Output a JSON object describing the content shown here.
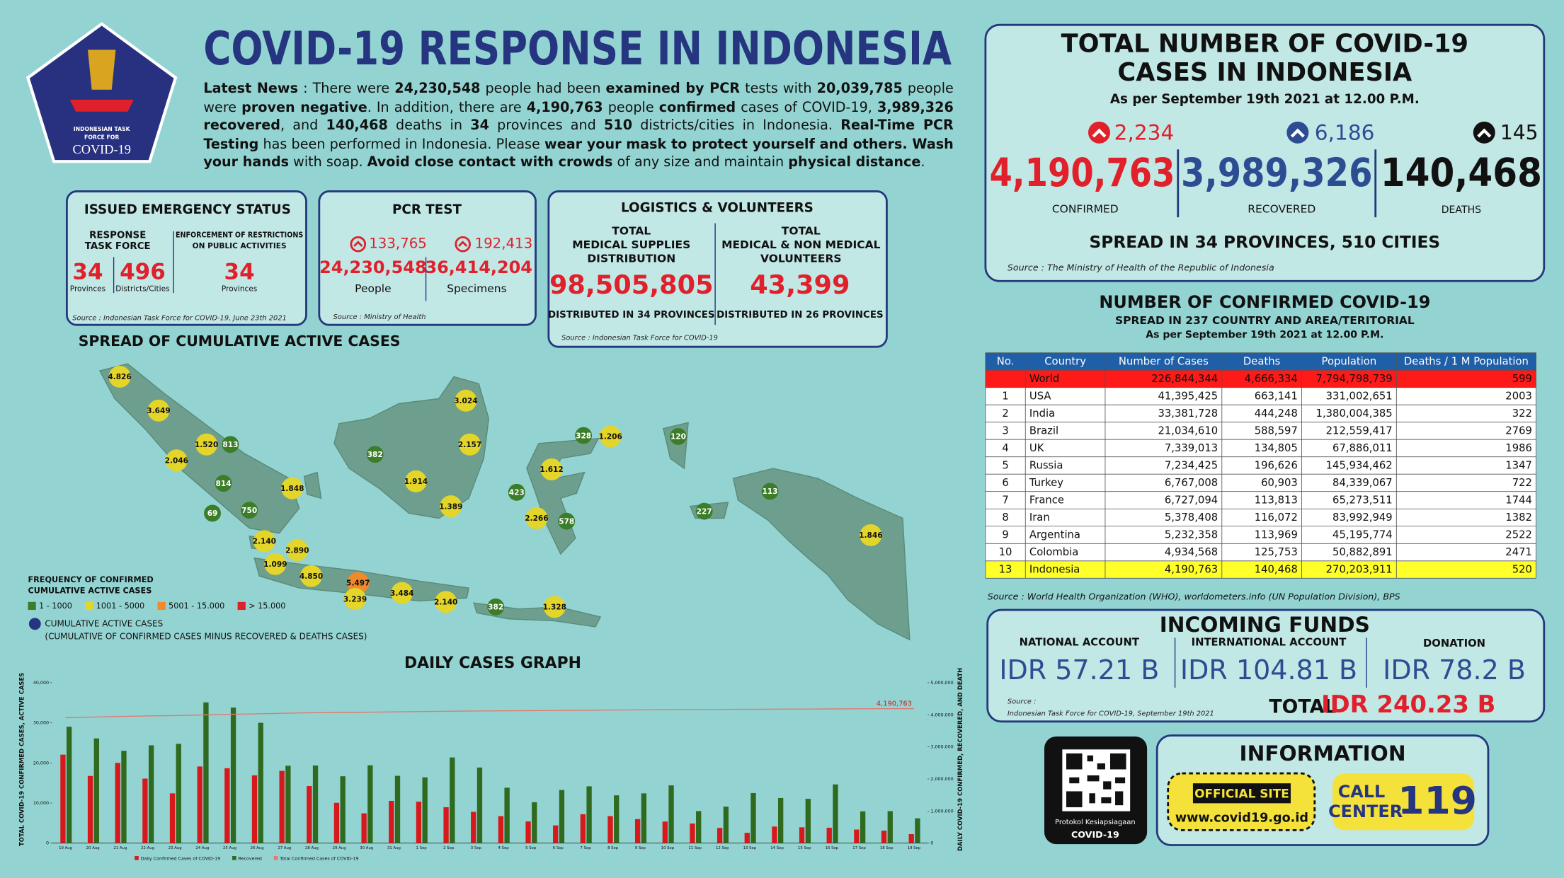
{
  "header": {
    "title": "COVID-19 RESPONSE IN INDONESIA",
    "logo_text": [
      "INDONESIAN TASK",
      "FORCE FOR",
      "COVID-19"
    ]
  },
  "news": [
    {
      "text": "Latest News",
      "bold": true
    },
    {
      "text": " : There were "
    },
    {
      "text": "24,230,548",
      "bold": true
    },
    {
      "text": " people had been "
    },
    {
      "text": "examined by PCR",
      "bold": true
    },
    {
      "text": " tests with "
    },
    {
      "text": "20,039,785",
      "bold": true
    },
    {
      "text": " people were "
    },
    {
      "text": "proven negative",
      "bold": true
    },
    {
      "text": ". In addition, there are "
    },
    {
      "text": "4,190,763",
      "bold": true
    },
    {
      "text": " people "
    },
    {
      "text": "confirmed",
      "bold": true
    },
    {
      "text": " cases of COVID-19, "
    },
    {
      "text": "3,989,326 recovered",
      "bold": true
    },
    {
      "text": ", and "
    },
    {
      "text": "140,468",
      "bold": true
    },
    {
      "text": " deaths in "
    },
    {
      "text": "34",
      "bold": true
    },
    {
      "text": " provinces and "
    },
    {
      "text": "510",
      "bold": true
    },
    {
      "text": " districts/cities in Indonesia. "
    },
    {
      "text": "Real-Time PCR Testing",
      "bold": true
    },
    {
      "text": " has been performed in Indonesia. Please "
    },
    {
      "text": "wear your mask to protect yourself and others. Wash your hands",
      "bold": true
    },
    {
      "text": " with soap. "
    },
    {
      "text": "Avoid close contact with crowds",
      "bold": true
    },
    {
      "text": " of any size and maintain "
    },
    {
      "text": "physical distance",
      "bold": true
    },
    {
      "text": "."
    }
  ],
  "emergency": {
    "title": "ISSUED EMERGENCY STATUS",
    "col1": [
      "RESPONSE",
      "TASK FORCE"
    ],
    "col2": [
      "ENFORCEMENT OF RESTRICTIONS",
      "ON PUBLIC ACTIVITIES"
    ],
    "v1": "34",
    "l1": "Provinces",
    "v2": "496",
    "l2": "Districts/Cities",
    "v3": "34",
    "l3": "Provinces",
    "source": "Source : Indonesian Task Force for COVID-19, June 23th 2021"
  },
  "pcr": {
    "title": "PCR TEST",
    "inc1": "133,765",
    "inc2": "192,413",
    "v1": "24,230,548",
    "l1": "People",
    "v2": "36,414,204",
    "l2": "Specimens",
    "source": "Source : Ministry of Health"
  },
  "logistics": {
    "title": "LOGISTICS & VOLUNTEERS",
    "h1": [
      "TOTAL",
      "MEDICAL SUPPLIES",
      "DISTRIBUTION"
    ],
    "h2": [
      "TOTAL",
      "MEDICAL & NON MEDICAL",
      "VOLUNTEERS"
    ],
    "v1": "98,505,805",
    "v2": "43,399",
    "d1": "DISTRIBUTED IN 34 PROVINCES",
    "d2": "DISTRIBUTED IN 26 PROVINCES",
    "source": "Source : Indonesian Task Force for COVID-19"
  },
  "totals": {
    "title": [
      "TOTAL NUMBER OF COVID-19",
      "CASES IN INDONESIA"
    ],
    "date": "As per September 19th 2021 at 12.00 P.M.",
    "inc_confirmed": "2,234",
    "inc_recovered": "6,186",
    "inc_deaths": "145",
    "confirmed": "4,190,763",
    "recovered": "3,989,326",
    "deaths": "140,468",
    "l_confirmed": "CONFIRMED",
    "l_recovered": "RECOVERED",
    "l_deaths": "DEATHS",
    "spread": "SPREAD IN 34 PROVINCES, 510 CITIES",
    "source": "Source : The Ministry of Health of the Republic of Indonesia"
  },
  "table": {
    "title": "NUMBER OF CONFIRMED COVID-19",
    "subtitle": "SPREAD IN 237 COUNTRY AND AREA/TERITORIAL",
    "date": "As per September 19th 2021 at 12.00 P.M.",
    "header": [
      "No.",
      "Country",
      "Number of Cases",
      "Deaths",
      "Population",
      "Deaths / 1 M Population"
    ],
    "rows": [
      [
        null,
        "World",
        "226,844,344",
        "4,666,334",
        "7,794,798,739",
        "599"
      ],
      [
        "1",
        "USA",
        "41,395,425",
        "663,141",
        "331,002,651",
        "2003"
      ],
      [
        "2",
        "India",
        "33,381,728",
        "444,248",
        "1,380,004,385",
        "322"
      ],
      [
        "3",
        "Brazil",
        "21,034,610",
        "588,597",
        "212,559,417",
        "2769"
      ],
      [
        "4",
        "UK",
        "7,339,013",
        "134,805",
        "67,886,011",
        "1986"
      ],
      [
        "5",
        "Russia",
        "7,234,425",
        "196,626",
        "145,934,462",
        "1347"
      ],
      [
        "6",
        "Turkey",
        "6,767,008",
        "60,903",
        "84,339,067",
        "722"
      ],
      [
        "7",
        "France",
        "6,727,094",
        "113,813",
        "65,273,511",
        "1744"
      ],
      [
        "8",
        "Iran",
        "5,378,408",
        "116,072",
        "83,992,949",
        "1382"
      ],
      [
        "9",
        "Argentina",
        "5,232,358",
        "113,969",
        "45,195,774",
        "2522"
      ],
      [
        "10",
        "Colombia",
        "4,934,568",
        "125,753",
        "50,882,891",
        "2471"
      ],
      [
        "13",
        "Indonesia",
        "4,190,763",
        "140,468",
        "270,203,911",
        "520"
      ]
    ],
    "source": "Source : World Health Organization (WHO), worldometers.info (UN Population Division), BPS"
  },
  "funds": {
    "title": "INCOMING FUNDS",
    "h1": "NATIONAL ACCOUNT",
    "h2": "INTERNATIONAL ACCOUNT",
    "h3": "DONATION",
    "v1": "IDR 57.21 B",
    "v2": "IDR 104.81 B",
    "v3": "IDR 78.2 B",
    "source": [
      "Source :",
      "Indonesian Task Force for COVID-19, September 19th 2021"
    ],
    "total_label": "TOTAL",
    "total": "IDR 240.23 B"
  },
  "info": {
    "qr_caption": [
      "Protokol Kesiapsiagaan",
      "COVID-19"
    ],
    "title": "INFORMATION",
    "site_label": "OFFICIAL SITE",
    "site": "www.covid19.go.id",
    "call": [
      "CALL",
      "CENTER"
    ],
    "call_number": "119"
  },
  "map": {
    "title": "SPREAD OF CUMULATIVE ACTIVE CASES",
    "legend_title": [
      "FREQUENCY OF CONFIRMED",
      "CUMULATIVE ACTIVE CASES"
    ],
    "legend": [
      {
        "label": "1 - 1000",
        "color": "#3c7d2a"
      },
      {
        "label": "1001 - 5000",
        "color": "#e3d52a"
      },
      {
        "label": "5001 - 15.000",
        "color": "#f08a2a"
      },
      {
        "label": "> 15.000",
        "color": "#e0202b"
      }
    ],
    "active_label": "CUMULATIVE ACTIVE CASES",
    "active_note": "(CUMULATIVE OF CONFIRMED CASES MINUS RECOVERED & DEATHS CASES)",
    "markers": [
      {
        "label": "4.826",
        "color": "#e3d52a"
      },
      {
        "label": "3.649",
        "color": "#e3d52a"
      },
      {
        "label": "1.520",
        "color": "#e3d52a"
      },
      {
        "label": "813",
        "color": "#3c7d2a"
      },
      {
        "label": "2.046",
        "color": "#e3d52a"
      },
      {
        "label": "814",
        "color": "#3c7d2a"
      },
      {
        "label": "1.848",
        "color": "#e3d52a"
      },
      {
        "label": "69",
        "color": "#3c7d2a"
      },
      {
        "label": "750",
        "color": "#3c7d2a"
      },
      {
        "label": "2.140",
        "color": "#e3d52a"
      },
      {
        "label": "2.890",
        "color": "#e3d52a"
      },
      {
        "label": "1.099",
        "color": "#e3d52a"
      },
      {
        "label": "4.850",
        "color": "#e3d52a"
      },
      {
        "label": "5.497",
        "color": "#f08a2a"
      },
      {
        "label": "3.239",
        "color": "#e3d52a"
      },
      {
        "label": "3.484",
        "color": "#e3d52a"
      },
      {
        "label": "2.140",
        "color": "#e3d52a"
      },
      {
        "label": "382",
        "color": "#3c7d2a"
      },
      {
        "label": "1.328",
        "color": "#e3d52a"
      },
      {
        "label": "382",
        "color": "#3c7d2a"
      },
      {
        "label": "1.914",
        "color": "#e3d52a"
      },
      {
        "label": "1.389",
        "color": "#e3d52a"
      },
      {
        "label": "3.024",
        "color": "#e3d52a"
      },
      {
        "label": "2.157",
        "color": "#e3d52a"
      },
      {
        "label": "328",
        "color": "#3c7d2a"
      },
      {
        "label": "1.206",
        "color": "#e3d52a"
      },
      {
        "label": "120",
        "color": "#3c7d2a"
      },
      {
        "label": "1.612",
        "color": "#e3d52a"
      },
      {
        "label": "423",
        "color": "#3c7d2a"
      },
      {
        "label": "2.266",
        "color": "#e3d52a"
      },
      {
        "label": "578",
        "color": "#3c7d2a"
      },
      {
        "label": "227",
        "color": "#3c7d2a"
      },
      {
        "label": "113",
        "color": "#3c7d2a"
      },
      {
        "label": "1.846",
        "color": "#e3d52a"
      }
    ]
  },
  "chart_data": {
    "type": "bar",
    "title": "DAILY CASES GRAPH",
    "ylabel": "TOTAL COVID-19 CONFIRMED CASES, ACTIVE CASES",
    "y2label": "DAILY COVID-19 CONFIRMED, RECOVERED, AND DEATH",
    "categories": [
      "19 Aug",
      "20 Aug",
      "21 Aug",
      "22 Aug",
      "23 Aug",
      "24 Aug",
      "25 Aug",
      "26 Aug",
      "27 Aug",
      "28 Aug",
      "29 Aug",
      "30 Aug",
      "31 Aug",
      "1 Sep",
      "2 Sep",
      "3 Sep",
      "4 Sep",
      "5 Sep",
      "6 Sep",
      "7 Sep",
      "8 Sep",
      "9 Sep",
      "10 Sep",
      "11 Sep",
      "12 Sep",
      "13 Sep",
      "14 Sep",
      "15 Sep",
      "16 Sep",
      "17 Sep",
      "18 Sep",
      "19 Sep"
    ],
    "series": [
      {
        "name": "Daily Confirmed Cases of COVID-19",
        "color": "#d7191c",
        "values": [
          22053,
          16744,
          20004,
          16081,
          12408,
          19106,
          18671,
          16899,
          18008,
          14224,
          10050,
          7427,
          10534,
          10337,
          8955,
          7797,
          6727,
          5403,
          4413,
          7201,
          6731,
          5990,
          5376,
          4891,
          3776,
          2577,
          4128,
          3948,
          3835,
          3385,
          3106,
          2234
        ]
      },
      {
        "name": "Recovered",
        "color": "#2f6a1f",
        "values": [
          29012,
          26103,
          23011,
          24376,
          24758,
          35082,
          33783,
          30000,
          19290,
          19344,
          16668,
          19398,
          16781,
          16394,
          21358,
          18844,
          13806,
          10191,
          13249,
          14159,
          11912,
          12400,
          14386,
          7986,
          9097,
          12474,
          11246,
          11046,
          14633,
          7912,
          7976,
          6186
        ]
      },
      {
        "name": "Total Confirmed Cases of COVID-19",
        "color": "#e07a72",
        "axis": "y2",
        "values": [
          3909797,
          3926541,
          3946545,
          3962626,
          3975034,
          3994140,
          4012811,
          4029710,
          4047718,
          4061942,
          4071992,
          4079419,
          4089953,
          4100290,
          4109245,
          4117042,
          4123769,
          4129172,
          4133585,
          4140786,
          4147517,
          4153507,
          4158883,
          4163774,
          4167550,
          4170127,
          4174255,
          4178203,
          4182038,
          4185423,
          4188529,
          4190763
        ]
      }
    ],
    "annotation": "4,190,763",
    "ylim": [
      0,
      40000
    ],
    "yticks": [
      0,
      {
        "value": 10000,
        "label": "10,000"
      },
      {
        "value": 20000,
        "label": "20,000"
      },
      {
        "value": 30000,
        "label": "30,000"
      },
      {
        "value": 40000,
        "label": "40,000"
      }
    ],
    "y2lim": [
      0,
      5000000
    ],
    "y2ticks": [
      0,
      {
        "value": 1000000,
        "label": "1,000,000"
      },
      {
        "value": 2000000,
        "label": "2,000,000"
      },
      {
        "value": 3000000,
        "label": "3,000,000"
      },
      {
        "value": 4000000,
        "label": "4,000,000"
      },
      {
        "value": 5000000,
        "label": "5,000,000"
      }
    ],
    "grid": false
  }
}
